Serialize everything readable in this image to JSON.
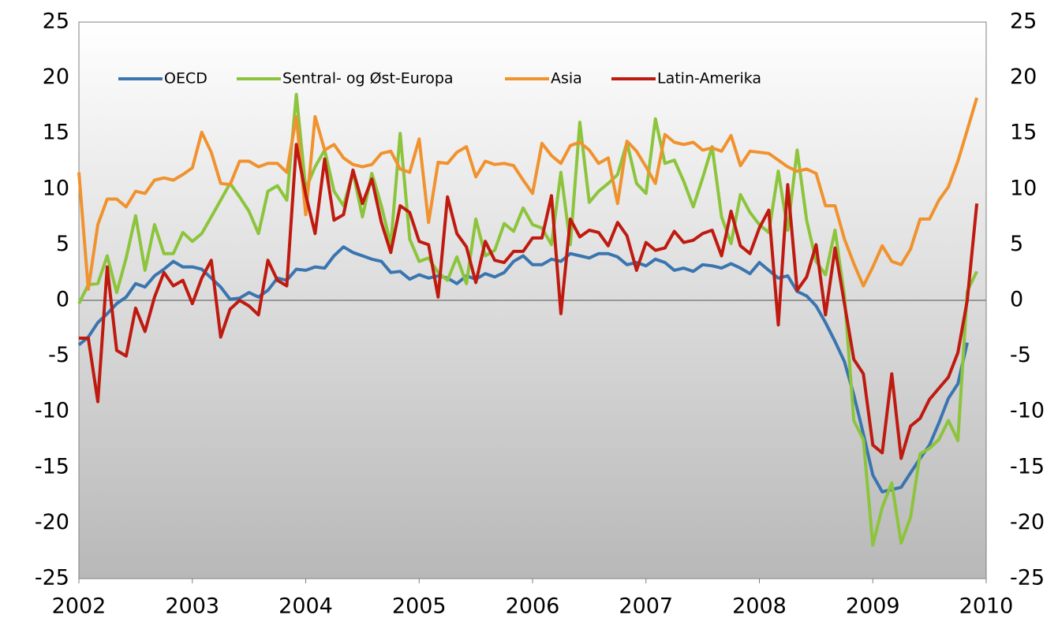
{
  "chart_data": {
    "type": "line",
    "x": [
      2002,
      2002.083,
      2002.167,
      2002.25,
      2002.333,
      2002.417,
      2002.5,
      2002.583,
      2002.667,
      2002.75,
      2002.833,
      2002.917,
      2003,
      2003.083,
      2003.167,
      2003.25,
      2003.333,
      2003.417,
      2003.5,
      2003.583,
      2003.667,
      2003.75,
      2003.833,
      2003.917,
      2004,
      2004.083,
      2004.167,
      2004.25,
      2004.333,
      2004.417,
      2004.5,
      2004.583,
      2004.667,
      2004.75,
      2004.833,
      2004.917,
      2005,
      2005.083,
      2005.167,
      2005.25,
      2005.333,
      2005.417,
      2005.5,
      2005.583,
      2005.667,
      2005.75,
      2005.833,
      2005.917,
      2006,
      2006.083,
      2006.167,
      2006.25,
      2006.333,
      2006.417,
      2006.5,
      2006.583,
      2006.667,
      2006.75,
      2006.833,
      2006.917,
      2007,
      2007.083,
      2007.167,
      2007.25,
      2007.333,
      2007.417,
      2007.5,
      2007.583,
      2007.667,
      2007.75,
      2007.833,
      2007.917,
      2008,
      2008.083,
      2008.167,
      2008.25,
      2008.333,
      2008.417,
      2008.5,
      2008.583,
      2008.667,
      2008.75,
      2008.833,
      2008.917,
      2009,
      2009.083,
      2009.167,
      2009.25,
      2009.333,
      2009.417,
      2009.5,
      2009.583,
      2009.667,
      2009.75,
      2009.833,
      2009.917
    ],
    "series": [
      {
        "name": "OECD",
        "color": "#3a75b0",
        "values": [
          -4,
          -3.3,
          -2,
          -1.2,
          -0.3,
          0.3,
          1.5,
          1.2,
          2.2,
          2.8,
          3.5,
          3,
          3,
          2.8,
          2,
          1.2,
          0.1,
          0.2,
          0.7,
          0.3,
          0.9,
          2,
          1.8,
          2.8,
          2.7,
          3,
          2.9,
          4,
          4.8,
          4.3,
          4,
          3.7,
          3.5,
          2.5,
          2.6,
          1.9,
          2.3,
          2,
          2.2,
          2,
          1.5,
          2.2,
          1.9,
          2.4,
          2.1,
          2.5,
          3.5,
          4,
          3.2,
          3.2,
          3.7,
          3.5,
          4.2,
          4,
          3.8,
          4.2,
          4.2,
          3.9,
          3.2,
          3.4,
          3.1,
          3.7,
          3.4,
          2.7,
          2.9,
          2.6,
          3.2,
          3.1,
          2.9,
          3.3,
          2.9,
          2.4,
          3.4,
          2.7,
          2,
          2.2,
          0.8,
          0.4,
          -0.5,
          -2,
          -3.7,
          -5.5,
          -8.5,
          -12,
          -15.7,
          -17.2,
          -17,
          -16.8,
          -15.5,
          -14.2,
          -13,
          -11,
          -8.8,
          -7.5,
          -3.8,
          null
        ]
      },
      {
        "name": "Sentral- og Øst-Europa",
        "color": "#8cc43c",
        "values": [
          -0.3,
          1.4,
          1.5,
          4,
          0.7,
          3.8,
          7.6,
          2.7,
          6.8,
          4.2,
          4.2,
          6.1,
          5.3,
          6,
          7.5,
          9,
          10.5,
          9.3,
          8,
          6,
          9.8,
          10.3,
          9,
          18.5,
          10,
          12,
          13.5,
          9.8,
          8.5,
          11.5,
          7.5,
          11.4,
          8.5,
          5,
          15,
          5.5,
          3.5,
          3.8,
          2.5,
          1.8,
          3.9,
          1.5,
          7.3,
          4,
          4.5,
          6.9,
          6.2,
          8.3,
          6.8,
          6.5,
          5,
          11.5,
          5,
          16,
          8.8,
          9.8,
          10.5,
          11.3,
          14.2,
          10.5,
          9.6,
          16.3,
          12.3,
          12.6,
          10.7,
          8.4,
          11,
          13.8,
          7.5,
          5.1,
          9.5,
          7.9,
          6.8,
          6.1,
          11.6,
          6.3,
          13.5,
          7.2,
          3.5,
          2.3,
          6.3,
          0.4,
          -10.8,
          -12.5,
          -22,
          -18.6,
          -16.4,
          -21.8,
          -19.5,
          -13.8,
          -13.3,
          -12.5,
          -10.8,
          -12.6,
          0.8,
          2.6
        ]
      },
      {
        "name": "Asia",
        "color": "#f0922e",
        "values": [
          11.5,
          1,
          6.8,
          9.1,
          9.1,
          8.4,
          9.8,
          9.6,
          10.8,
          11,
          10.8,
          11.3,
          11.9,
          15.1,
          13.3,
          10.5,
          10.4,
          12.5,
          12.5,
          12,
          12.3,
          12.3,
          11.5,
          16.5,
          7.7,
          16.5,
          13.5,
          14,
          12.8,
          12.2,
          12,
          12.2,
          13.2,
          13.4,
          11.8,
          11.5,
          14.5,
          7,
          12.4,
          12.3,
          13.3,
          13.8,
          11.1,
          12.5,
          12.2,
          12.3,
          12.1,
          10.8,
          9.6,
          14.1,
          13,
          12.3,
          13.9,
          14.2,
          13.5,
          12.3,
          12.8,
          8.7,
          14.3,
          13.4,
          12,
          10.5,
          14.9,
          14.2,
          14,
          14.2,
          13.5,
          13.7,
          13.4,
          14.8,
          12.1,
          13.4,
          13.3,
          13.2,
          12.6,
          12,
          11.6,
          11.8,
          11.4,
          8.5,
          8.5,
          5.5,
          3.3,
          1.3,
          3,
          4.9,
          3.5,
          3.2,
          4.6,
          7.3,
          7.3,
          9,
          10.2,
          12.5,
          15.3,
          18.2
        ]
      },
      {
        "name": "Latin-Amerika",
        "color": "#bf1a10",
        "values": [
          -3.4,
          -3.4,
          -9.1,
          3,
          -4.5,
          -5,
          -0.7,
          -2.8,
          0.3,
          2.5,
          1.3,
          1.8,
          -0.3,
          2,
          3.6,
          -3.3,
          -0.8,
          0,
          -0.5,
          -1.3,
          3.6,
          1.8,
          1.3,
          14,
          9.5,
          6,
          12.7,
          7.2,
          7.7,
          11.7,
          8.7,
          10.9,
          7,
          4.3,
          8.5,
          7.9,
          5.3,
          5,
          0.3,
          9.3,
          6,
          4.8,
          1.6,
          5.3,
          3.6,
          3.4,
          4.4,
          4.4,
          5.6,
          5.6,
          9.4,
          -1.2,
          7.3,
          5.7,
          6.3,
          6.1,
          4.9,
          7,
          5.8,
          2.7,
          5.2,
          4.5,
          4.7,
          6.2,
          5.2,
          5.4,
          6,
          6.3,
          4,
          8,
          4.9,
          4.2,
          6.5,
          8.1,
          -2.2,
          10.4,
          0.9,
          2.1,
          5,
          -1.3,
          4.7,
          -0.3,
          -5.3,
          -6.6,
          -13,
          -13.7,
          -6.6,
          -14.2,
          -11.3,
          -10.6,
          -8.9,
          -7.9,
          -6.9,
          -4.7,
          0,
          8.7
        ]
      }
    ],
    "xlim": [
      2002,
      2010
    ],
    "xticks": [
      2002,
      2003,
      2004,
      2005,
      2006,
      2007,
      2008,
      2009,
      2010
    ],
    "ylim": [
      -25,
      25
    ],
    "yticks": [
      -25,
      -20,
      -15,
      -10,
      -5,
      0,
      5,
      10,
      15,
      20,
      25
    ],
    "y2lim": [
      -25,
      25
    ],
    "y2ticks": [
      -25,
      -20,
      -15,
      -10,
      -5,
      0,
      5,
      10,
      15,
      20,
      25
    ],
    "legend": "top"
  }
}
